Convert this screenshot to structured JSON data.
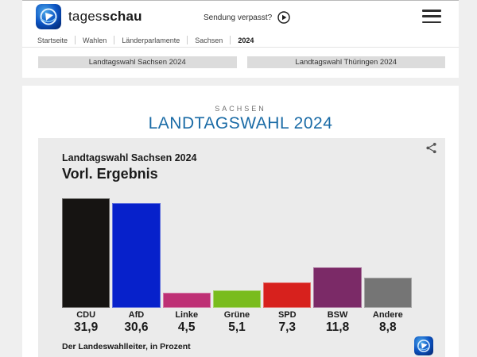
{
  "header": {
    "logo_text_regular": "tages",
    "logo_text_bold": "schau",
    "sendung_verpasst_label": "Sendung verpasst?"
  },
  "breadcrumb": {
    "items": [
      {
        "label": "Startseite",
        "active": false
      },
      {
        "label": "Wahlen",
        "active": false
      },
      {
        "label": "Länderparlamente",
        "active": false
      },
      {
        "label": "Sachsen",
        "active": false
      },
      {
        "label": "2024",
        "active": true
      }
    ]
  },
  "nav_buttons": [
    {
      "label": "Landtagswahl Sachsen 2024"
    },
    {
      "label": "Landtagswahl Thüringen 2024"
    }
  ],
  "page": {
    "kicker": "SACHSEN",
    "title": "LANDTAGSWAHL 2024",
    "title_color": "#1a6ba6"
  },
  "chart": {
    "title": "Landtagswahl Sachsen 2024",
    "subtitle": "Vorl. Ergebnis",
    "source": "Der Landeswahlleiter, in Prozent"
  },
  "chart_data": {
    "type": "bar",
    "title": "Landtagswahl Sachsen 2024 — Vorl. Ergebnis",
    "categories": [
      "CDU",
      "AfD",
      "Linke",
      "Grüne",
      "SPD",
      "BSW",
      "Andere"
    ],
    "values": [
      31.9,
      30.6,
      4.5,
      5.1,
      7.3,
      11.8,
      8.8
    ],
    "value_labels": [
      "31,9",
      "30,6",
      "4,5",
      "5,1",
      "7,3",
      "11,8",
      "8,8"
    ],
    "colors": [
      "#161412",
      "#0721cb",
      "#be3075",
      "#79bc1d",
      "#d7211d",
      "#7b2a67",
      "#757575"
    ],
    "unit": "Prozent",
    "ylabel": "",
    "xlabel": "",
    "ylim": [
      0,
      33
    ],
    "grid": false,
    "legend": false,
    "source": "Der Landeswahlleiter, in Prozent"
  }
}
